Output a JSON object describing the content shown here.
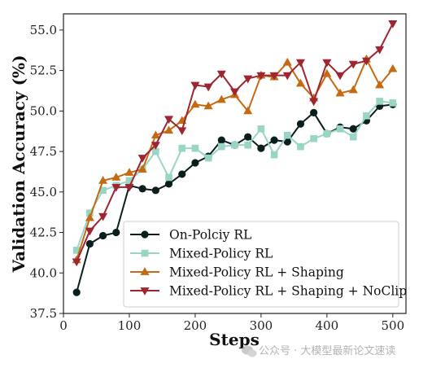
{
  "chart_data": {
    "type": "line",
    "xlabel": "Steps",
    "ylabel": "Validation Accuracy (%)",
    "xlim": [
      0,
      520
    ],
    "ylim": [
      37.5,
      56.0
    ],
    "xticks": [
      0,
      100,
      200,
      300,
      400,
      500
    ],
    "xtick_labels": [
      "0",
      "100",
      "200",
      "300",
      "400",
      "500"
    ],
    "yticks": [
      37.5,
      40.0,
      42.5,
      45.0,
      47.5,
      50.0,
      52.5,
      55.0
    ],
    "ytick_labels": [
      "37.5",
      "40.0",
      "42.5",
      "45.0",
      "47.5",
      "50.0",
      "52.5",
      "55.0"
    ],
    "grid": false,
    "legend_position": "lower-right",
    "x": [
      20,
      40,
      60,
      80,
      100,
      120,
      140,
      160,
      180,
      200,
      220,
      240,
      260,
      280,
      300,
      320,
      340,
      360,
      380,
      400,
      420,
      440,
      460,
      480,
      500
    ],
    "series": [
      {
        "name": "On-Polciy RL",
        "color": "#0b1e1e",
        "marker": "circle",
        "values": [
          38.8,
          41.8,
          42.3,
          42.5,
          45.4,
          45.2,
          45.1,
          45.5,
          46.1,
          46.8,
          47.2,
          48.2,
          47.9,
          48.4,
          47.7,
          48.2,
          48.1,
          49.2,
          49.9,
          48.6,
          49.0,
          48.9,
          49.4,
          50.3,
          50.4
        ]
      },
      {
        "name": "Mixed-Policy RL",
        "color": "#99d5c4",
        "marker": "square",
        "values": [
          41.4,
          43.7,
          45.1,
          45.4,
          45.7,
          46.4,
          47.5,
          45.9,
          47.7,
          47.7,
          47.1,
          47.8,
          47.9,
          47.9,
          48.9,
          47.3,
          48.5,
          47.8,
          48.3,
          48.6,
          48.9,
          48.4,
          49.7,
          50.6,
          50.5
        ]
      },
      {
        "name": "Mixed-Policy RL + Shaping",
        "color": "#c46a12",
        "marker": "triangle-up",
        "values": [
          40.8,
          43.4,
          45.7,
          45.9,
          46.2,
          46.4,
          48.5,
          48.8,
          49.4,
          50.4,
          50.3,
          50.7,
          51.0,
          50.0,
          52.2,
          52.1,
          53.0,
          51.7,
          50.8,
          52.3,
          51.1,
          51.3,
          53.2,
          51.6,
          52.6
        ]
      },
      {
        "name": "Mixed-Policy RL + Shaping + NoClip",
        "color": "#9e2630",
        "marker": "triangle-down",
        "values": [
          40.7,
          42.6,
          43.5,
          45.3,
          45.3,
          47.1,
          47.9,
          49.5,
          48.8,
          51.6,
          51.5,
          52.3,
          51.2,
          52.0,
          52.2,
          52.2,
          52.2,
          53.0,
          50.6,
          53.0,
          52.2,
          52.9,
          53.1,
          53.8,
          55.4
        ]
      }
    ]
  },
  "watermark": {
    "text": "公众号 · 大模型最新论文速读",
    "icon": "wechat-icon"
  }
}
